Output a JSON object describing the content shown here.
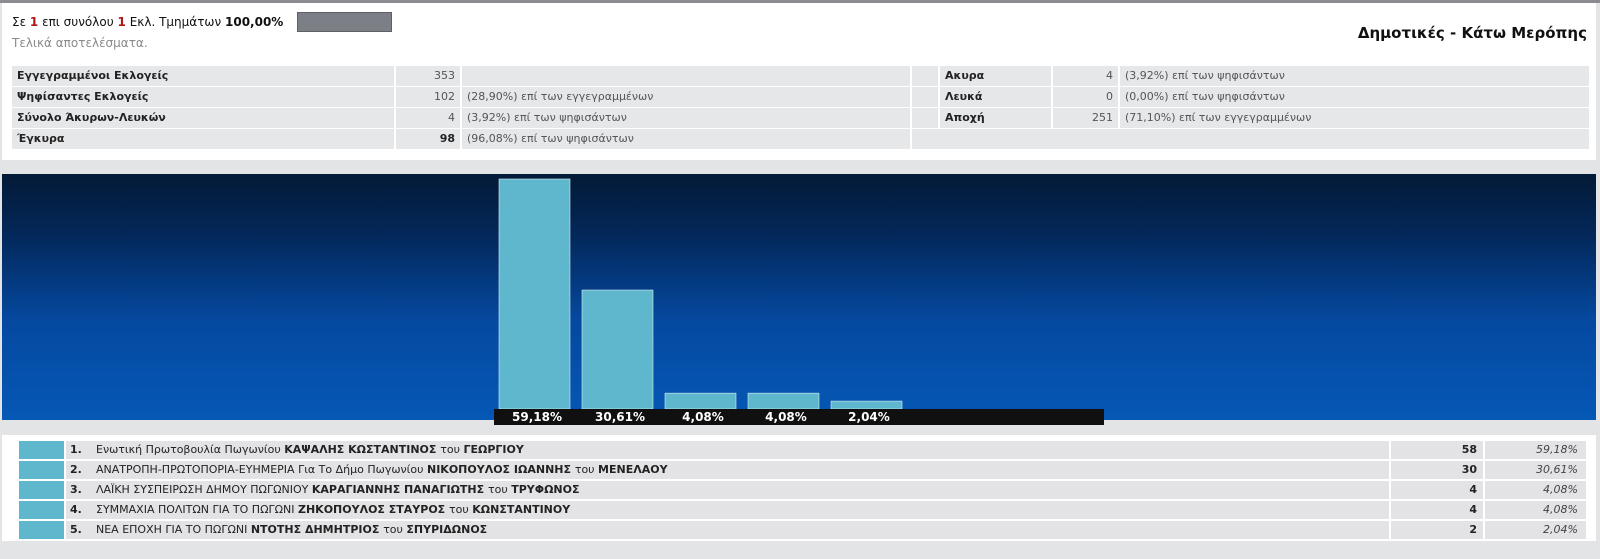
{
  "progress": {
    "prefix": "Σε",
    "done": "1",
    "middle": "επι συνόλου",
    "total": "1",
    "suffix": "Εκλ. Τμημάτων",
    "percent": "100,00%",
    "fraction_complete": 1.0
  },
  "status": "Τελικά αποτελέσματα.",
  "page_title": "Δημοτικές - Κάτω Μερόπης",
  "stats": {
    "registered_label": "Εγγεγραμμένοι Εκλογείς",
    "registered_value": "353",
    "voted_label": "Ψηφίσαντες Εκλογείς",
    "voted_value": "102",
    "voted_note": "(28,90%) επί των εγγεγραμμένων",
    "invalid_blank_label": "Σύνολο Άκυρων-Λευκών",
    "invalid_blank_value": "4",
    "invalid_blank_note": "(3,92%) επί των ψηφισάντων",
    "valid_label": "Έγκυρα",
    "valid_value": "98",
    "valid_note": "(96,08%) επί των ψηφισάντων",
    "invalid_label": "Ακυρα",
    "invalid_value": "4",
    "invalid_note": "(3,92%) επί των ψηφισάντων",
    "blank_label": "Λευκά",
    "blank_value": "0",
    "blank_note": "(0,00%) επί των ψηφισάντων",
    "abstention_label": "Αποχή",
    "abstention_value": "251",
    "abstention_note": "(71,10%) επί των εγγεγραμμένων"
  },
  "colors": {
    "bar": "#5fb7cd",
    "accent_red": "#b01818"
  },
  "chart_data": {
    "type": "bar",
    "categories": [
      "1",
      "2",
      "3",
      "4",
      "5"
    ],
    "values": [
      59.18,
      30.61,
      4.08,
      4.08,
      2.04
    ],
    "labels": [
      "59,18%",
      "30,61%",
      "4,08%",
      "4,08%",
      "2,04%"
    ],
    "ylim": [
      0,
      59.18
    ]
  },
  "results": [
    {
      "rank": "1.",
      "party": "Ενωτική Πρωτοβουλία Πωγωνίου",
      "candidate": "ΚΑΨΑΛΗΣ ΚΩΣΤΑΝΤΙΝΟΣ",
      "father_prefix": "του",
      "father": "ΓΕΩΡΓΙΟΥ",
      "votes": "58",
      "percent": "59,18%"
    },
    {
      "rank": "2.",
      "party": "ΑΝΑΤΡΟΠΗ-ΠΡΩΤΟΠΟΡΙΑ-ΕΥΗΜΕΡΙΑ Για Το Δήμο Πωγωνίου",
      "candidate": "ΝΙΚΟΠΟΥΛΟΣ ΙΩΑΝΝΗΣ",
      "father_prefix": "του",
      "father": "ΜΕΝΕΛΑΟΥ",
      "votes": "30",
      "percent": "30,61%"
    },
    {
      "rank": "3.",
      "party": "ΛΑΪΚΗ ΣΥΣΠΕΙΡΩΣΗ ΔΗΜΟΥ ΠΩΓΩΝΙΟΥ",
      "candidate": "ΚΑΡΑΓΙΑΝΝΗΣ ΠΑΝΑΓΙΩΤΗΣ",
      "father_prefix": "του",
      "father": "ΤΡΥΦΩΝΟΣ",
      "votes": "4",
      "percent": "4,08%"
    },
    {
      "rank": "4.",
      "party": "ΣΥΜΜΑΧΙΑ ΠΟΛΙΤΩΝ ΓΙΑ ΤΟ ΠΩΓΩΝΙ",
      "candidate": "ΖΗΚΟΠΟΥΛΟΣ ΣΤΑΥΡΟΣ",
      "father_prefix": "του",
      "father": "ΚΩΝΣΤΑΝΤΙΝΟΥ",
      "votes": "4",
      "percent": "4,08%"
    },
    {
      "rank": "5.",
      "party": "ΝΕΑ ΕΠΟΧΗ ΓΙΑ ΤΟ ΠΩΓΩΝΙ",
      "candidate": "ΝΤΟΤΗΣ ΔΗΜΗΤΡΙΟΣ",
      "father_prefix": "του",
      "father": "ΣΠΥΡΙΔΩΝΟΣ",
      "votes": "2",
      "percent": "2,04%"
    }
  ]
}
